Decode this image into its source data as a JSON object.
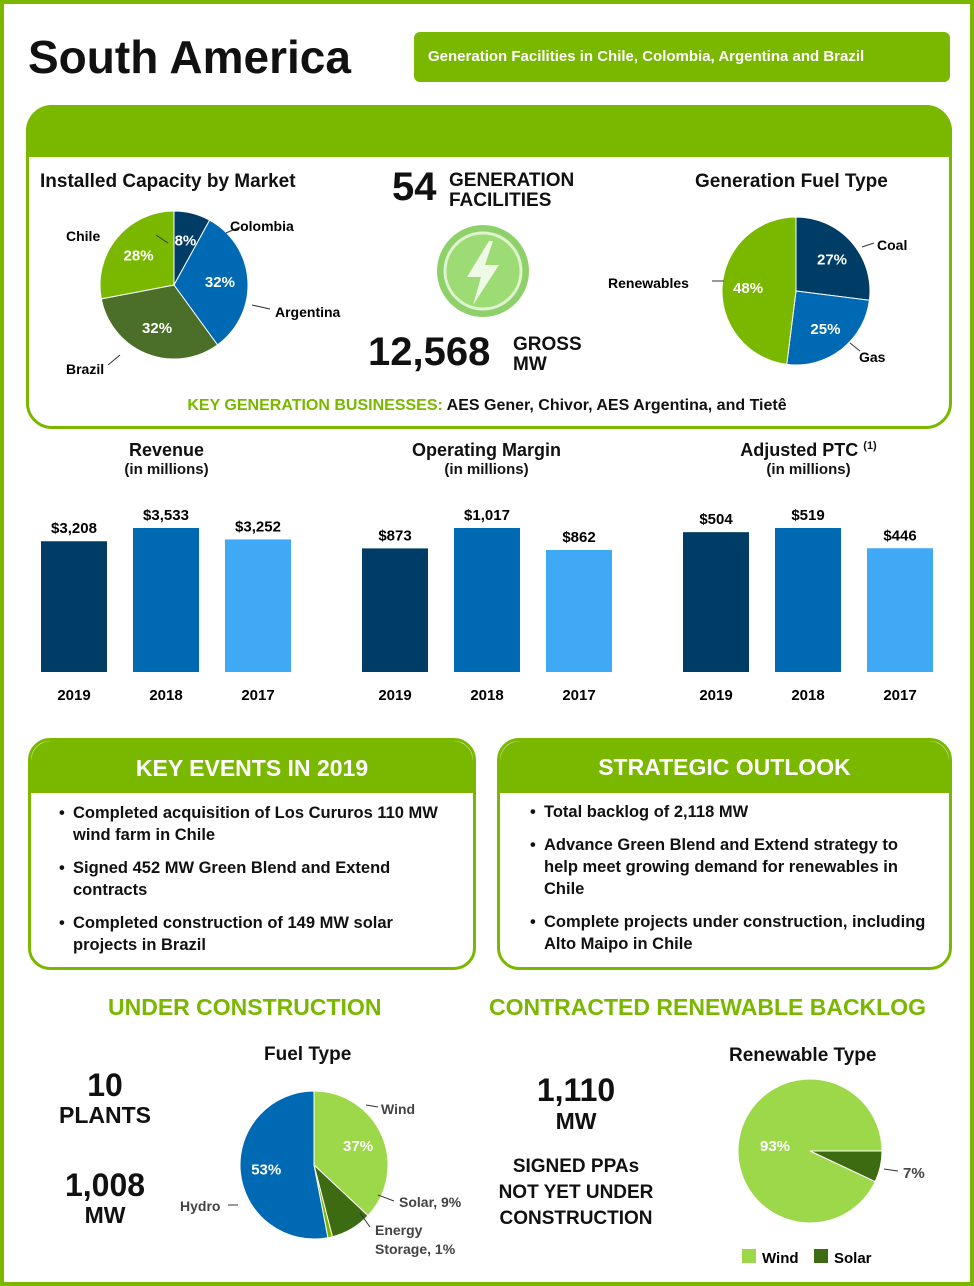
{
  "header": {
    "title": "South America",
    "badge": "Generation Facilities in Chile, Colombia, Argentina and Brazil"
  },
  "overview": {
    "facilities_value": "54",
    "facilities_label_1": "GENERATION",
    "facilities_label_2": "FACILITIES",
    "gross_value": "12,568",
    "gross_label_1": "GROSS",
    "gross_label_2": "MW",
    "key_biz_label": "KEY GENERATION BUSINESSES",
    "key_biz_sep": ":",
    "key_biz_value": " AES Gener, Chivor, AES Argentina, and Tietê"
  },
  "key_events": {
    "heading": "KEY EVENTS IN 2019",
    "items": [
      "Completed acquisition of Los Cururos 110 MW wind farm in Chile",
      "Signed 452 MW Green Blend and Extend contracts",
      "Completed construction of 149 MW solar projects in Brazil"
    ]
  },
  "strategic_outlook": {
    "heading": "STRATEGIC OUTLOOK",
    "items": [
      "Total backlog of 2,118 MW",
      "Advance Green Blend and Extend strategy to help meet growing demand for renewables in Chile",
      "Complete projects under construction, including Alto Maipo in Chile"
    ]
  },
  "under_construction": {
    "heading": "UNDER CONSTRUCTION",
    "plants_value": "10",
    "plants_label": "PLANTS",
    "mw_value": "1,008",
    "mw_label": "MW"
  },
  "backlog": {
    "heading": "CONTRACTED RENEWABLE BACKLOG",
    "mw_value": "1,110",
    "mw_label": "MW",
    "desc_1": "SIGNED PPAs",
    "desc_2": "NOT YET UNDER",
    "desc_3": "CONSTRUCTION"
  },
  "colors": {
    "green": "#7ab800",
    "dark_green": "#4b6e29",
    "light_green": "#9dd84a",
    "navy": "#003d66",
    "blue": "#0069b3",
    "light_blue": "#3fa9f5",
    "solar_green": "#3d6b11"
  },
  "chart_data": [
    {
      "id": "installed-capacity",
      "type": "pie",
      "title": "Installed Capacity by Market",
      "slices": [
        {
          "label": "Colombia",
          "value": 8,
          "text": "8%",
          "color": "#003d66"
        },
        {
          "label": "Argentina",
          "value": 32,
          "text": "32%",
          "color": "#0069b3"
        },
        {
          "label": "Brazil",
          "value": 32,
          "text": "32%",
          "color": "#4b6e29"
        },
        {
          "label": "Chile",
          "value": 28,
          "text": "28%",
          "color": "#7ab800"
        }
      ]
    },
    {
      "id": "fuel-type",
      "type": "pie",
      "title": "Generation Fuel Type",
      "slices": [
        {
          "label": "Coal",
          "value": 27,
          "text": "27%",
          "color": "#003d66"
        },
        {
          "label": "Gas",
          "value": 25,
          "text": "25%",
          "color": "#0069b3"
        },
        {
          "label": "Renewables",
          "value": 48,
          "text": "48%",
          "color": "#7ab800"
        }
      ]
    },
    {
      "id": "revenue",
      "type": "bar",
      "title": "Revenue",
      "subtitle": "(in millions)",
      "categories": [
        "2019",
        "2018",
        "2017"
      ],
      "values": [
        3208,
        3533,
        3252
      ],
      "labels": [
        "$3,208",
        "$3,533",
        "$3,252"
      ],
      "ylim": [
        0,
        3533
      ]
    },
    {
      "id": "operating-margin",
      "type": "bar",
      "title": "Operating Margin",
      "subtitle": "(in millions)",
      "categories": [
        "2019",
        "2018",
        "2017"
      ],
      "values": [
        873,
        1017,
        862
      ],
      "labels": [
        "$873",
        "$1,017",
        "$862"
      ],
      "ylim": [
        0,
        1017
      ]
    },
    {
      "id": "adjusted-ptc",
      "type": "bar",
      "title": "Adjusted PTC",
      "title_note": "(1)",
      "subtitle": "(in millions)",
      "categories": [
        "2019",
        "2018",
        "2017"
      ],
      "values": [
        504,
        519,
        446
      ],
      "labels": [
        "$504",
        "$519",
        "$446"
      ],
      "ylim": [
        0,
        519
      ]
    },
    {
      "id": "construction-fuel",
      "type": "pie",
      "title": "Fuel Type",
      "slices": [
        {
          "label": "Wind",
          "value": 37,
          "text": "37%",
          "color": "#9dd84a"
        },
        {
          "label": "Solar, 9%",
          "value": 9,
          "text": "",
          "color": "#3d6b11"
        },
        {
          "label": "Energy Storage, 1%",
          "value": 1,
          "text": "",
          "color": "#7ab800"
        },
        {
          "label": "Hydro",
          "value": 53,
          "text": "53%",
          "color": "#0069b3"
        }
      ]
    },
    {
      "id": "renewable-type",
      "type": "pie",
      "title": "Renewable Type",
      "slices": [
        {
          "label": "Solar",
          "value": 7,
          "text": "7%",
          "color": "#3d6b11"
        },
        {
          "label": "Wind",
          "value": 93,
          "text": "93%",
          "color": "#9dd84a"
        }
      ],
      "legend": [
        "Wind",
        "Solar"
      ]
    }
  ]
}
